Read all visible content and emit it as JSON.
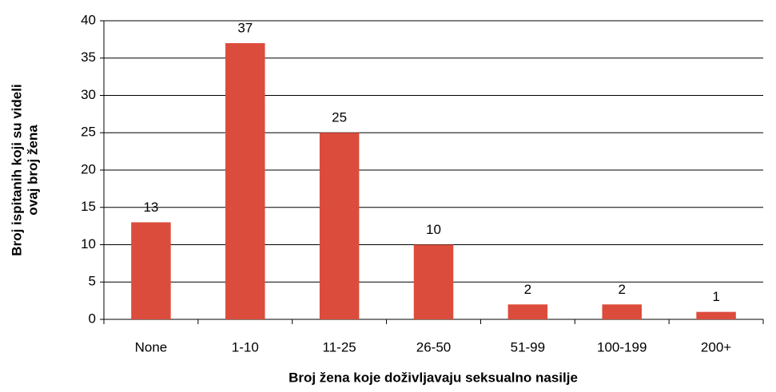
{
  "chart_data": {
    "type": "bar",
    "x_label": "Broj žena koje doživljavaju seksualno nasilje",
    "y_label": [
      "Broj ispitanih koji su videli",
      "ovaj broj žena"
    ],
    "categories": [
      "None",
      "1-10",
      "11-25",
      "26-50",
      "51-99",
      "100-199",
      "200+"
    ],
    "values": [
      13,
      37,
      25,
      10,
      2,
      2,
      1
    ],
    "color": "#dc4c3c",
    "ylim": [
      0,
      40
    ],
    "yticks": [
      0,
      5,
      10,
      15,
      20,
      25,
      30,
      35,
      40
    ],
    "grid": true
  }
}
